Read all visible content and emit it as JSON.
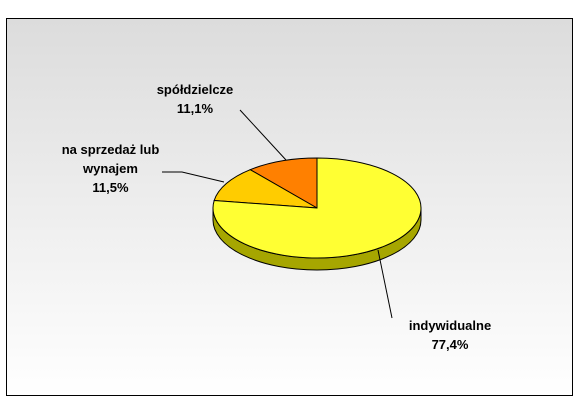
{
  "chart_data": {
    "type": "pie3d",
    "categories": [
      "indywidualne",
      "na sprzedaż lub wynajem",
      "spółdzielcze"
    ],
    "values": [
      77.4,
      11.5,
      11.1
    ],
    "value_labels": [
      "77,4%",
      "11,5%",
      "11,1%"
    ],
    "colors": [
      "#ffff33",
      "#ffcc00",
      "#ff8000"
    ]
  }
}
